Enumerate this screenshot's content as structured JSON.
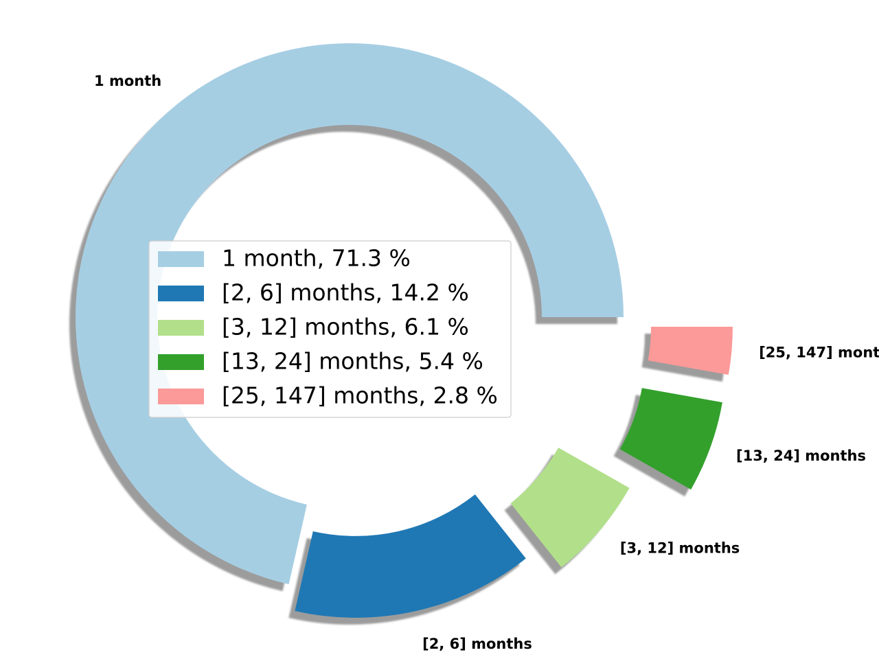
{
  "chart_data": {
    "type": "pie",
    "style": "donut",
    "title": "",
    "shadow": true,
    "categories": [
      "1 month",
      "[2, 6] months",
      "[3, 12] months",
      "[13, 24] months",
      "[25, 147] months"
    ],
    "values": [
      71.3,
      14.2,
      6.1,
      5.4,
      2.8
    ],
    "colors": [
      "#a6cee3",
      "#1f78b4",
      "#b2df8a",
      "#33a02c",
      "#fb9a99"
    ],
    "legend": {
      "placement": "center",
      "entries": [
        "1 month, 71.3 %",
        "[2, 6] months, 14.2 %",
        "[3, 12] months, 6.1 %",
        "[13, 24] months, 5.4 %",
        "[25, 147] months, 2.8 %"
      ]
    }
  }
}
